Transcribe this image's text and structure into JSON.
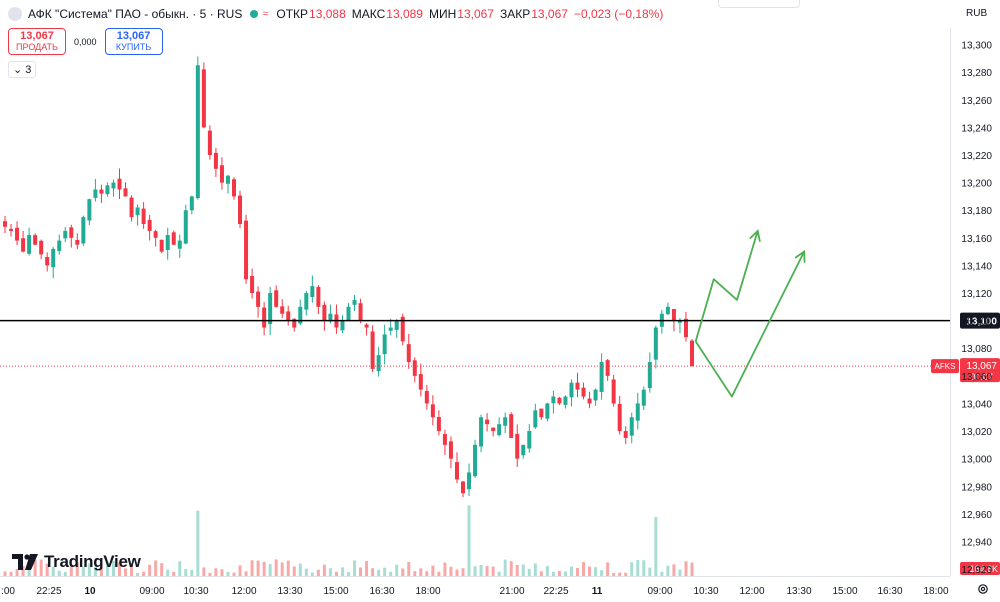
{
  "header": {
    "symbol": "АФК \"Система\" ПАО - обыкн. · 5 · RUS",
    "open_label": "ОТКР",
    "open": "13,088",
    "high_label": "МАКС",
    "high": "13,089",
    "low_label": "МИН",
    "low": "13,067",
    "close_label": "ЗАКР",
    "close": "13,067",
    "change": "−0,023 (−0,18%)"
  },
  "trade": {
    "sell_price": "13,067",
    "sell_label": "ПРОДАТЬ",
    "spread": "0,000",
    "buy_price": "13,067",
    "buy_label": "КУПИТЬ"
  },
  "indicators_toggle": "3",
  "currency": "RUB",
  "watermark": "TradingView",
  "colors": {
    "up": "#22ab94",
    "down": "#f23645",
    "drawing": "#4caf50",
    "level": "#000000"
  },
  "chart_data": {
    "type": "candlestick",
    "ylim": [
      12.915,
      13.312
    ],
    "y_ticks": [
      "13,300",
      "13,280",
      "13,260",
      "13,240",
      "13,220",
      "13,200",
      "13,180",
      "13,160",
      "13,140",
      "13,120",
      "13,100",
      "13,080",
      "13,060",
      "13,040",
      "13,020",
      "13,000",
      "12,980",
      "12,960",
      "12,940",
      "12,920"
    ],
    "x_ticks": [
      ":00",
      "22:25",
      "10",
      "09:00",
      "10:30",
      "12:00",
      "13:30",
      "15:00",
      "16:30",
      "18:00",
      "21:00",
      "22:25",
      "11",
      "09:00",
      "10:30",
      "12:00",
      "13:30",
      "15:00",
      "16:30",
      "18:00"
    ],
    "horizontal_level": {
      "value": 13.1,
      "label": "13,100"
    },
    "last_price": {
      "symbol": "AFKS",
      "value": 13.067,
      "label": "13,067",
      "countdown": "00:07"
    },
    "volume_label": "164,6K",
    "close_path": [
      13.168,
      13.165,
      13.158,
      13.15,
      13.162,
      13.155,
      13.148,
      13.14,
      13.152,
      13.158,
      13.165,
      13.16,
      13.155,
      13.175,
      13.188,
      13.195,
      13.192,
      13.198,
      13.2,
      13.195,
      13.19,
      13.175,
      13.182,
      13.17,
      13.165,
      13.16,
      13.15,
      13.162,
      13.155,
      13.158,
      13.18,
      13.19,
      13.285,
      13.24,
      13.22,
      13.21,
      13.2,
      13.205,
      13.19,
      13.17,
      13.13,
      13.12,
      13.11,
      13.095,
      13.12,
      13.11,
      13.105,
      13.1,
      13.095,
      13.11,
      13.12,
      13.125,
      13.11,
      13.1,
      13.105,
      13.095,
      13.1,
      13.11,
      13.115,
      13.1,
      13.095,
      13.065,
      13.075,
      13.09,
      13.095,
      13.1,
      13.085,
      13.07,
      13.06,
      13.05,
      13.04,
      13.03,
      13.02,
      13.01,
      13.0,
      12.985,
      12.975,
      12.99,
      13.01,
      13.03,
      13.025,
      13.02,
      13.025,
      13.03,
      13.015,
      13.0,
      13.01,
      13.02,
      13.035,
      13.03,
      13.04,
      13.045,
      13.04,
      13.045,
      13.055,
      13.05,
      13.045,
      13.04,
      13.05,
      13.07,
      13.06,
      13.04,
      13.02,
      13.015,
      13.03,
      13.04,
      13.05,
      13.07,
      13.095,
      13.105,
      13.11,
      13.1,
      13.1,
      13.088,
      13.067
    ],
    "drawings": [
      {
        "type": "arrow-path",
        "points": [
          [
            13.085,
            "10:10"
          ],
          [
            13.13,
            "10:45"
          ],
          [
            13.115,
            "11:30"
          ],
          [
            13.165,
            "12:10"
          ]
        ]
      },
      {
        "type": "arrow-path",
        "points": [
          [
            13.085,
            "10:10"
          ],
          [
            13.045,
            "11:20"
          ],
          [
            13.15,
            "13:40"
          ]
        ]
      }
    ]
  }
}
